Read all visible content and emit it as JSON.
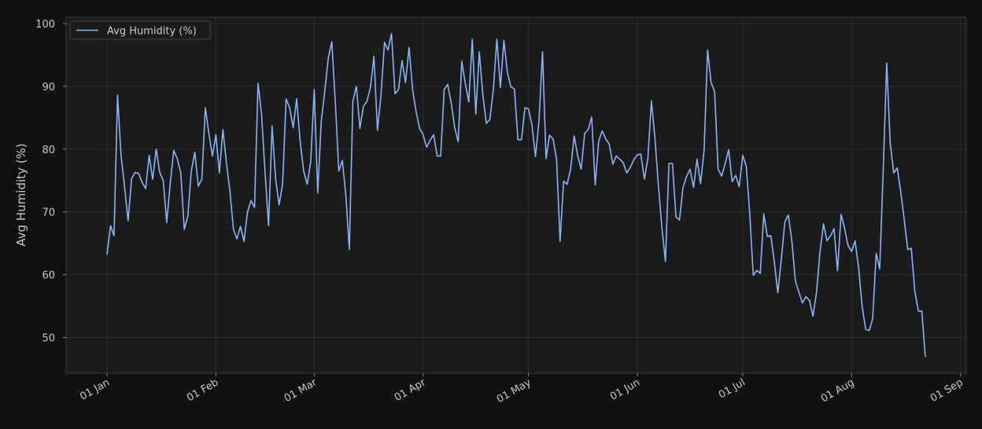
{
  "chart_data": {
    "type": "line",
    "y_label": "Avg Humidity (%)",
    "x": [
      "01 Jan",
      "02 Jan",
      "03 Jan",
      "04 Jan",
      "05 Jan",
      "06 Jan",
      "07 Jan",
      "08 Jan",
      "09 Jan",
      "10 Jan",
      "11 Jan",
      "12 Jan",
      "13 Jan",
      "14 Jan",
      "15 Jan",
      "16 Jan",
      "17 Jan",
      "18 Jan",
      "19 Jan",
      "20 Jan",
      "21 Jan",
      "22 Jan",
      "23 Jan",
      "24 Jan",
      "25 Jan",
      "26 Jan",
      "27 Jan",
      "28 Jan",
      "29 Jan",
      "30 Jan",
      "31 Jan",
      "01 Feb",
      "02 Feb",
      "03 Feb",
      "04 Feb",
      "05 Feb",
      "06 Feb",
      "07 Feb",
      "08 Feb",
      "09 Feb",
      "10 Feb",
      "11 Feb",
      "12 Feb",
      "13 Feb",
      "14 Feb",
      "15 Feb",
      "16 Feb",
      "17 Feb",
      "18 Feb",
      "19 Feb",
      "20 Feb",
      "21 Feb",
      "22 Feb",
      "23 Feb",
      "24 Feb",
      "25 Feb",
      "26 Feb",
      "27 Feb",
      "28 Feb",
      "01 Mar",
      "02 Mar",
      "03 Mar",
      "04 Mar",
      "05 Mar",
      "06 Mar",
      "07 Mar",
      "08 Mar",
      "09 Mar",
      "10 Mar",
      "11 Mar",
      "12 Mar",
      "13 Mar",
      "14 Mar",
      "15 Mar",
      "16 Mar",
      "17 Mar",
      "18 Mar",
      "19 Mar",
      "20 Mar",
      "21 Mar",
      "22 Mar",
      "23 Mar",
      "24 Mar",
      "25 Mar",
      "26 Mar",
      "27 Mar",
      "28 Mar",
      "29 Mar",
      "30 Mar",
      "31 Mar",
      "01 Apr",
      "02 Apr",
      "03 Apr",
      "04 Apr",
      "05 Apr",
      "06 Apr",
      "07 Apr",
      "08 Apr",
      "09 Apr",
      "10 Apr",
      "11 Apr",
      "12 Apr",
      "13 Apr",
      "14 Apr",
      "15 Apr",
      "16 Apr",
      "17 Apr",
      "18 Apr",
      "19 Apr",
      "20 Apr",
      "21 Apr",
      "22 Apr",
      "23 Apr",
      "24 Apr",
      "25 Apr",
      "26 Apr",
      "27 Apr",
      "28 Apr",
      "29 Apr",
      "30 Apr",
      "01 May",
      "02 May",
      "03 May",
      "04 May",
      "05 May",
      "06 May",
      "07 May",
      "08 May",
      "09 May",
      "10 May",
      "11 May",
      "12 May",
      "13 May",
      "14 May",
      "15 May",
      "16 May",
      "17 May",
      "18 May",
      "19 May",
      "20 May",
      "21 May",
      "22 May",
      "23 May",
      "24 May",
      "25 May",
      "26 May",
      "27 May",
      "28 May",
      "29 May",
      "30 May",
      "31 May",
      "01 Jun",
      "02 Jun",
      "03 Jun",
      "04 Jun",
      "05 Jun",
      "06 Jun",
      "07 Jun",
      "08 Jun",
      "09 Jun",
      "10 Jun",
      "11 Jun",
      "12 Jun",
      "13 Jun",
      "14 Jun",
      "15 Jun",
      "16 Jun",
      "17 Jun",
      "18 Jun",
      "19 Jun",
      "20 Jun",
      "21 Jun",
      "22 Jun",
      "23 Jun",
      "24 Jun",
      "25 Jun",
      "26 Jun",
      "27 Jun",
      "28 Jun",
      "29 Jun",
      "30 Jun",
      "01 Jul",
      "02 Jul",
      "03 Jul",
      "04 Jul",
      "05 Jul",
      "06 Jul",
      "07 Jul",
      "08 Jul",
      "09 Jul",
      "10 Jul",
      "11 Jul",
      "12 Jul",
      "13 Jul",
      "14 Jul",
      "15 Jul",
      "16 Jul",
      "17 Jul",
      "18 Jul",
      "19 Jul",
      "20 Jul",
      "21 Jul",
      "22 Jul",
      "23 Jul",
      "24 Jul",
      "25 Jul",
      "26 Jul",
      "27 Jul",
      "28 Jul",
      "29 Jul",
      "30 Jul",
      "31 Jul",
      "01 Aug",
      "02 Aug",
      "03 Aug",
      "04 Aug",
      "05 Aug",
      "06 Aug",
      "07 Aug",
      "08 Aug",
      "09 Aug",
      "10 Aug",
      "11 Aug",
      "12 Aug",
      "13 Aug",
      "14 Aug",
      "15 Aug",
      "16 Aug",
      "17 Aug",
      "18 Aug",
      "19 Aug",
      "20 Aug",
      "21 Aug",
      "22 Aug"
    ],
    "series": [
      {
        "name": "Avg Humidity (%)",
        "color": "#8ab4f8",
        "values": [
          63.2,
          67.8,
          66.2,
          88.6,
          79,
          74,
          68.6,
          75.3,
          76.3,
          76.1,
          74.7,
          73.7,
          79,
          75.2,
          80,
          76.3,
          75,
          68.3,
          74.5,
          79.8,
          78.5,
          76.2,
          67.2,
          69.3,
          76.5,
          79.5,
          74.1,
          75.2,
          86.6,
          82.5,
          78.9,
          82.3,
          76.2,
          83.1,
          77.8,
          73.3,
          67.2,
          65.7,
          67.7,
          65.3,
          70,
          71.8,
          70.7,
          90.5,
          85.6,
          76.3,
          67.8,
          83.7,
          75.3,
          71.1,
          74.5,
          88,
          86.6,
          83.4,
          88,
          81.2,
          76.5,
          74.4,
          78,
          89.5,
          73,
          84.4,
          89.2,
          94.5,
          97.1,
          87.5,
          76.5,
          78.2,
          72.6,
          64,
          87.6,
          90,
          83.3,
          86.8,
          87.6,
          89.8,
          94.8,
          83,
          88.5,
          97,
          95.8,
          98.4,
          88.8,
          89.5,
          94.1,
          90.6,
          96.2,
          89.5,
          86,
          83.3,
          82.3,
          80.3,
          81.4,
          82.3,
          78.9,
          78.9,
          89.5,
          90.3,
          87.4,
          83.4,
          81.2,
          94,
          90.5,
          87.5,
          97.5,
          85.6,
          95.5,
          88.7,
          84.1,
          84.7,
          89.5,
          97.5,
          89.8,
          97.3,
          92.2,
          89.9,
          89.6,
          81.5,
          81.5,
          86.6,
          86.4,
          83.8,
          78.8,
          84.5,
          95.5,
          78.5,
          82.2,
          81.6,
          78.4,
          65.3,
          74.9,
          74.4,
          76.8,
          82.1,
          79,
          76.8,
          82.5,
          83.1,
          85.1,
          74.3,
          81.3,
          82.9,
          81.6,
          80.8,
          77.6,
          78.9,
          78.4,
          77.8,
          76.2,
          77.1,
          78.3,
          79.1,
          79.2,
          75.2,
          78.5,
          87.7,
          81.8,
          74.2,
          67.4,
          62.1,
          77.7,
          77.7,
          69.2,
          68.7,
          73.9,
          75.6,
          76.8,
          73.9,
          78.4,
          74.5,
          79.8,
          95.8,
          90.6,
          89.2,
          76.8,
          75.7,
          77.7,
          79.9,
          74.8,
          75.8,
          74,
          79,
          77.3,
          69.8,
          59.9,
          60.7,
          60.2,
          69.7,
          66.1,
          66.2,
          62,
          57.1,
          62.5,
          68.4,
          69.5,
          65.3,
          59,
          57.2,
          55.5,
          56.5,
          55.9,
          53.4,
          57.1,
          63.6,
          68.1,
          65.4,
          66.2,
          67.3,
          60.6,
          69.6,
          67.4,
          64.6,
          63.7,
          65.4,
          61.1,
          55,
          51.3,
          51.1,
          53,
          63.4,
          60.9,
          76.5,
          93.7,
          80.9,
          76.2,
          77,
          73.2,
          68.7,
          64,
          64.2,
          57.4,
          54.2,
          54.2,
          46.9
        ]
      }
    ],
    "xticks": [
      "01 Jan",
      "01 Feb",
      "01 Mar",
      "01 Apr",
      "01 May",
      "01 Jun",
      "01 Jul",
      "01 Aug",
      "01 Sep"
    ],
    "ylim": [
      44.3,
      101
    ],
    "yticks": [
      50,
      60,
      70,
      80,
      90,
      100
    ],
    "grid": true,
    "legend": "upper left"
  }
}
